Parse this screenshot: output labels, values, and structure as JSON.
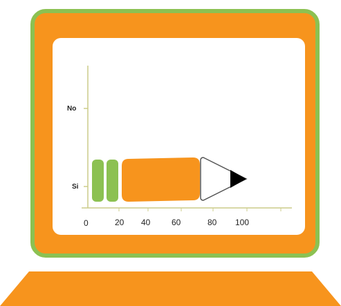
{
  "colors": {
    "frame_orange": "#f7941d",
    "frame_border_green": "#8cc152",
    "screen_white": "#ffffff",
    "eraser_green": "#8cc152",
    "pencil_body_orange": "#f7941d",
    "pencil_tip_outline": "#555555",
    "pencil_lead": "#000000",
    "axis": "#cccc88"
  },
  "chart_data": {
    "type": "bar",
    "y_categories": [
      "No",
      "Si"
    ],
    "x_ticks": [
      "0",
      "20",
      "40",
      "60",
      "80",
      "100"
    ],
    "xlim": [
      0,
      100
    ],
    "series": [
      {
        "category": "Si",
        "segments": [
          {
            "part": "eraser-1",
            "start": 2,
            "end": 9
          },
          {
            "part": "eraser-2",
            "start": 11,
            "end": 18
          },
          {
            "part": "pencil-body",
            "start": 20,
            "end": 67
          },
          {
            "part": "pencil-tip",
            "start": 68,
            "end": 92
          }
        ]
      }
    ]
  }
}
